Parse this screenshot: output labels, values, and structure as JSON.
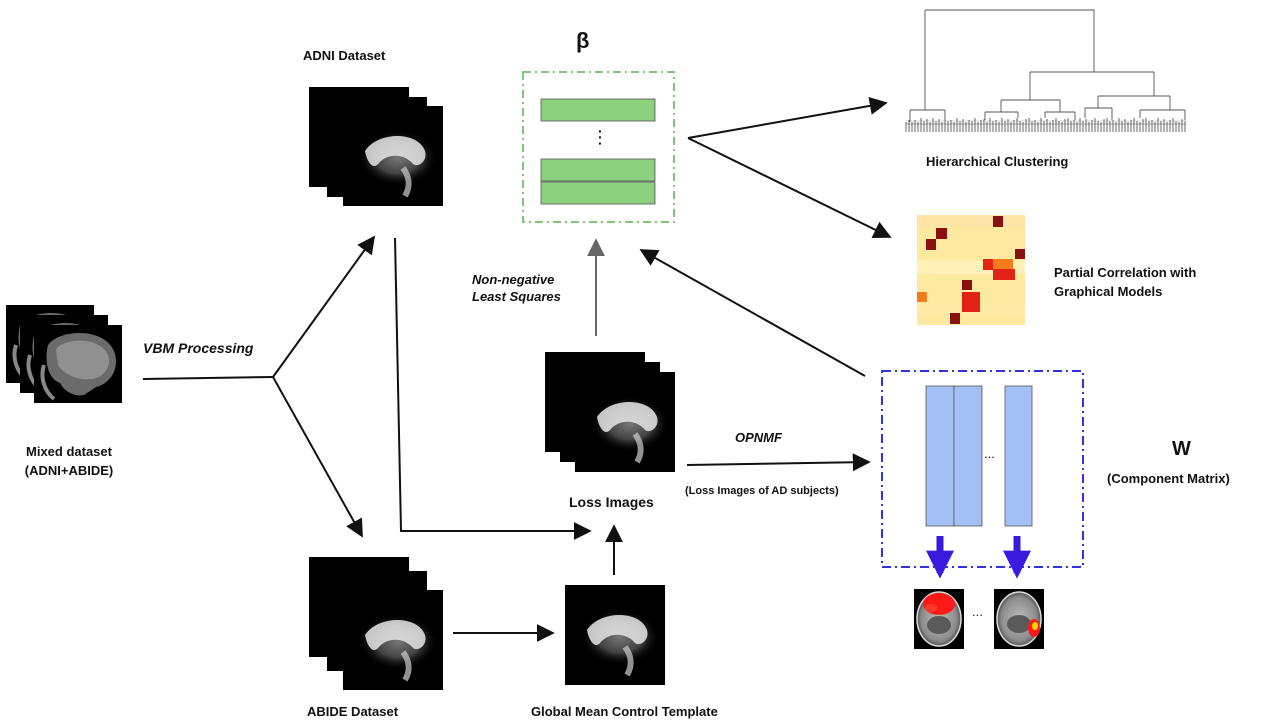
{
  "labels": {
    "adni": "ADNI  Dataset",
    "abide": "ABIDE Dataset",
    "mixed_line1": "Mixed dataset",
    "mixed_line2": "(ADNI+ABIDE)",
    "vbm": "VBM Processing",
    "nnls_line1": "Non-negative",
    "nnls_line2": "Least Squares",
    "beta": "β",
    "dots_vertical": "⋮",
    "loss_images": "Loss Images",
    "global_template": "Global Mean Control Template",
    "opnmf": "OPNMF",
    "opnmf_sub": "(Loss Images of AD subjects)",
    "w": "W",
    "w_sub": "(Component Matrix)",
    "w_dots": "...",
    "brain_dots": "...",
    "hier": "Hierarchical Clustering",
    "partial_line1": "Partial Correlation with",
    "partial_line2": "Graphical Models"
  },
  "colors": {
    "beta_box_border": "#7fc77a",
    "beta_bar_fill": "#8dd07f",
    "w_box_border": "#3333dd",
    "w_bar_fill": "#a3c0f4",
    "w_arrow": "#3a1adf",
    "heat_background": "#fde9a0",
    "heat_dark": "#8b1010",
    "heat_red": "#e32414",
    "heat_orange": "#f37b1e",
    "arrow": "#111111",
    "arrow_grey": "#666666"
  }
}
